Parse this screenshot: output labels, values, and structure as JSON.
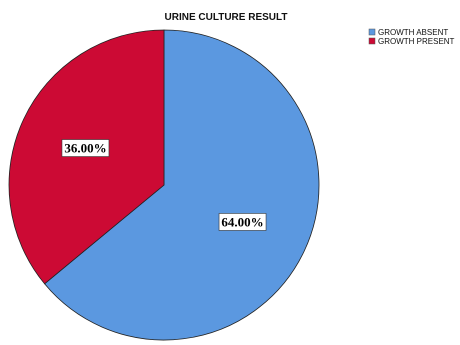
{
  "chart_data": {
    "type": "pie",
    "title": "URINE CULTURE RESULT",
    "categories": [
      "GROWTH ABSENT",
      "GROWTH PRESENT"
    ],
    "values": [
      64.0,
      36.0
    ],
    "labels": [
      "64.00%",
      "36.00%"
    ],
    "colors": [
      "#5b98e0",
      "#cc0a34"
    ],
    "start_angle_deg": 0,
    "direction": "clockwise",
    "legend_position": "top-right"
  }
}
